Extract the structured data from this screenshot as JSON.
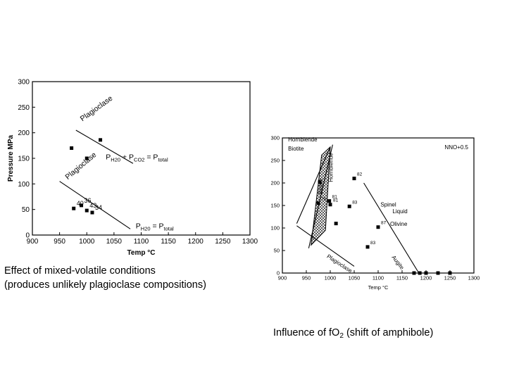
{
  "captions": {
    "left_line1": "Effect of mixed-volatile conditions",
    "left_line2": "(produces unlikely plagioclase compositions)",
    "right_pre": "Influence of fO",
    "right_sub": "2",
    "right_post": " (shift of amphibole)"
  },
  "chart_data": [
    {
      "type": "scatter",
      "title": "",
      "xlabel": "Temp °C",
      "ylabel": "Pressure MPa",
      "xlim": [
        900,
        1300
      ],
      "ylim": [
        0,
        300
      ],
      "xticks": [
        900,
        950,
        1000,
        1050,
        1100,
        1150,
        1200,
        1250,
        1300
      ],
      "yticks": [
        0,
        50,
        100,
        150,
        200,
        250,
        300
      ],
      "grid": false,
      "points": [
        {
          "x": 972,
          "y": 170,
          "label": ""
        },
        {
          "x": 1000,
          "y": 150,
          "label": ""
        },
        {
          "x": 1025,
          "y": 186,
          "label": ""
        },
        {
          "x": 976,
          "y": 52,
          "label": "40"
        },
        {
          "x": 990,
          "y": 58,
          "label": "36"
        },
        {
          "x": 1000,
          "y": 48,
          "label": "43"
        },
        {
          "x": 1010,
          "y": 44,
          "label": "34"
        }
      ],
      "lines": [
        {
          "name": "Plagioclase",
          "x": [
            980,
            1085
          ],
          "y": [
            205,
            140
          ]
        },
        {
          "name": "Plagioclase",
          "x": [
            950,
            1080
          ],
          "y": [
            105,
            12
          ]
        }
      ],
      "annotations": [
        {
          "text": "Plagioclase",
          "x": 992,
          "y": 222,
          "rot": -36
        },
        {
          "text": "Plagioclase",
          "x": 965,
          "y": 108,
          "rot": -40
        },
        {
          "text_parts": [
            "P",
            "H20",
            " + P",
            "CO2",
            " = P",
            "total"
          ],
          "x": 1035,
          "y": 148
        },
        {
          "text_parts": [
            "P",
            "H20",
            " = P",
            "total"
          ],
          "x": 1090,
          "y": 13
        }
      ]
    },
    {
      "type": "scatter",
      "title": "",
      "xlabel": "Temp °C",
      "ylabel": "",
      "xlim": [
        900,
        1300
      ],
      "ylim": [
        0,
        300
      ],
      "xticks": [
        900,
        950,
        1000,
        1050,
        1100,
        1150,
        1200,
        1250,
        1300
      ],
      "yticks": [
        0,
        50,
        100,
        150,
        200,
        250,
        300
      ],
      "grid": false,
      "legend_text": "NNO+0.5",
      "points": [
        {
          "x": 978,
          "y": 202,
          "label": ""
        },
        {
          "x": 1050,
          "y": 210,
          "label": "82"
        },
        {
          "x": 998,
          "y": 160,
          "label": "81"
        },
        {
          "x": 975,
          "y": 155,
          "label": "79"
        },
        {
          "x": 1000,
          "y": 152,
          "label": "81"
        },
        {
          "x": 1040,
          "y": 148,
          "label": "83"
        },
        {
          "x": 1012,
          "y": 110,
          "label": ""
        },
        {
          "x": 1100,
          "y": 102,
          "label": "87"
        },
        {
          "x": 1078,
          "y": 58,
          "label": "83"
        },
        {
          "x": 1175,
          "y": 0,
          "label": ""
        },
        {
          "x": 1187,
          "y": 0,
          "label": ""
        },
        {
          "x": 1200,
          "y": 0,
          "label": ""
        },
        {
          "x": 1225,
          "y": 0,
          "label": ""
        },
        {
          "x": 1250,
          "y": 0,
          "label": ""
        }
      ],
      "lines": [
        {
          "name": "Hornblende",
          "x": [
            955,
            1005
          ],
          "y": [
            55,
            285
          ]
        },
        {
          "name": "Biotite",
          "x": [
            930,
            1000
          ],
          "y": [
            110,
            280
          ]
        },
        {
          "name": "Plagioclase",
          "x": [
            930,
            1050
          ],
          "y": [
            105,
            15
          ]
        },
        {
          "name": "Augite",
          "x": [
            1070,
            1185
          ],
          "y": [
            200,
            0
          ]
        }
      ],
      "shaded": [
        {
          "x": [
            960,
            990,
            1000,
            982
          ],
          "y": [
            62,
            95,
            280,
            262
          ]
        }
      ],
      "annotations": [
        {
          "text": "Hornblende",
          "x": 912,
          "y": 292
        },
        {
          "text": "Biotite",
          "x": 912,
          "y": 272
        },
        {
          "text": "Biotite",
          "x": 984,
          "y": 175,
          "rot": -90
        },
        {
          "text": "Hornblende",
          "x": 1005,
          "y": 202,
          "rot": -90
        },
        {
          "text": "Spinel",
          "x": 1105,
          "y": 148
        },
        {
          "text": "Liquid",
          "x": 1130,
          "y": 133
        },
        {
          "text": "Olivine",
          "x": 1125,
          "y": 105
        },
        {
          "text": "Augite",
          "x": 1128,
          "y": 35,
          "rot": 52
        },
        {
          "text": "Plagioclase",
          "x": 992,
          "y": 35,
          "rot": 33
        }
      ]
    }
  ]
}
